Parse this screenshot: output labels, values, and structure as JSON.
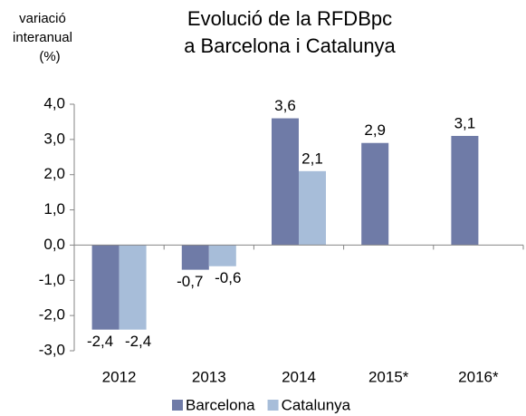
{
  "chart_data": {
    "type": "bar",
    "title": [
      "Evolució de la RFDBpc",
      "a Barcelona i Catalunya"
    ],
    "y_label": [
      "variació",
      "interanual",
      "(%)"
    ],
    "categories": [
      "2012",
      "2013",
      "2014",
      "2015*",
      "2016*"
    ],
    "series": [
      {
        "name": "Barcelona",
        "color": "#6f7ba7",
        "values": [
          -2.4,
          -0.7,
          3.6,
          2.9,
          3.1
        ],
        "value_labels": [
          "-2,4",
          "-0,7",
          "3,6",
          "2,9",
          "3,1"
        ]
      },
      {
        "name": "Catalunya",
        "color": "#a7bdd9",
        "values": [
          -2.4,
          -0.6,
          2.1,
          null,
          null
        ],
        "value_labels": [
          "-2,4",
          "-0,6",
          "2,1",
          null,
          null
        ]
      }
    ],
    "ylim": [
      -3,
      4
    ],
    "yticks": [
      {
        "value": -3,
        "label": "-3,0"
      },
      {
        "value": -2,
        "label": "-2,0"
      },
      {
        "value": -1,
        "label": "-1,0"
      },
      {
        "value": 0,
        "label": "0,0"
      },
      {
        "value": 1,
        "label": "1,0"
      },
      {
        "value": 2,
        "label": "2,0"
      },
      {
        "value": 3,
        "label": "3,0"
      },
      {
        "value": 4,
        "label": "4,0"
      }
    ],
    "grid": false,
    "legend": "bottom"
  }
}
